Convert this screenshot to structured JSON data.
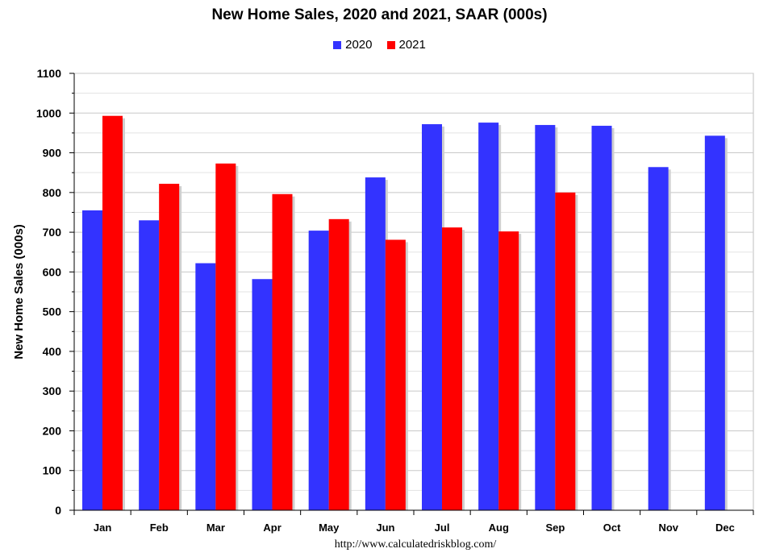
{
  "chart_data": {
    "type": "bar",
    "title": "New Home Sales,  2020 and 2021, SAAR (000s)",
    "xlabel": "",
    "ylabel": "New Home Sales (000s)",
    "categories": [
      "Jan",
      "Feb",
      "Mar",
      "Apr",
      "May",
      "Jun",
      "Jul",
      "Aug",
      "Sep",
      "Oct",
      "Nov",
      "Dec"
    ],
    "series": [
      {
        "name": "2020",
        "color": "#3333ff",
        "values": [
          755,
          730,
          622,
          582,
          704,
          838,
          972,
          976,
          970,
          968,
          864,
          943
        ]
      },
      {
        "name": "2021",
        "color": "#ff0000",
        "values": [
          993,
          822,
          873,
          796,
          733,
          681,
          712,
          702,
          800,
          null,
          null,
          null
        ]
      }
    ],
    "ylim": [
      0,
      1100
    ],
    "yticks": [
      0,
      100,
      200,
      300,
      400,
      500,
      600,
      700,
      800,
      900,
      1000,
      1100
    ],
    "grid": true,
    "legend_position": "top-center"
  },
  "source": "http://www.calculatedriskblog.com/"
}
